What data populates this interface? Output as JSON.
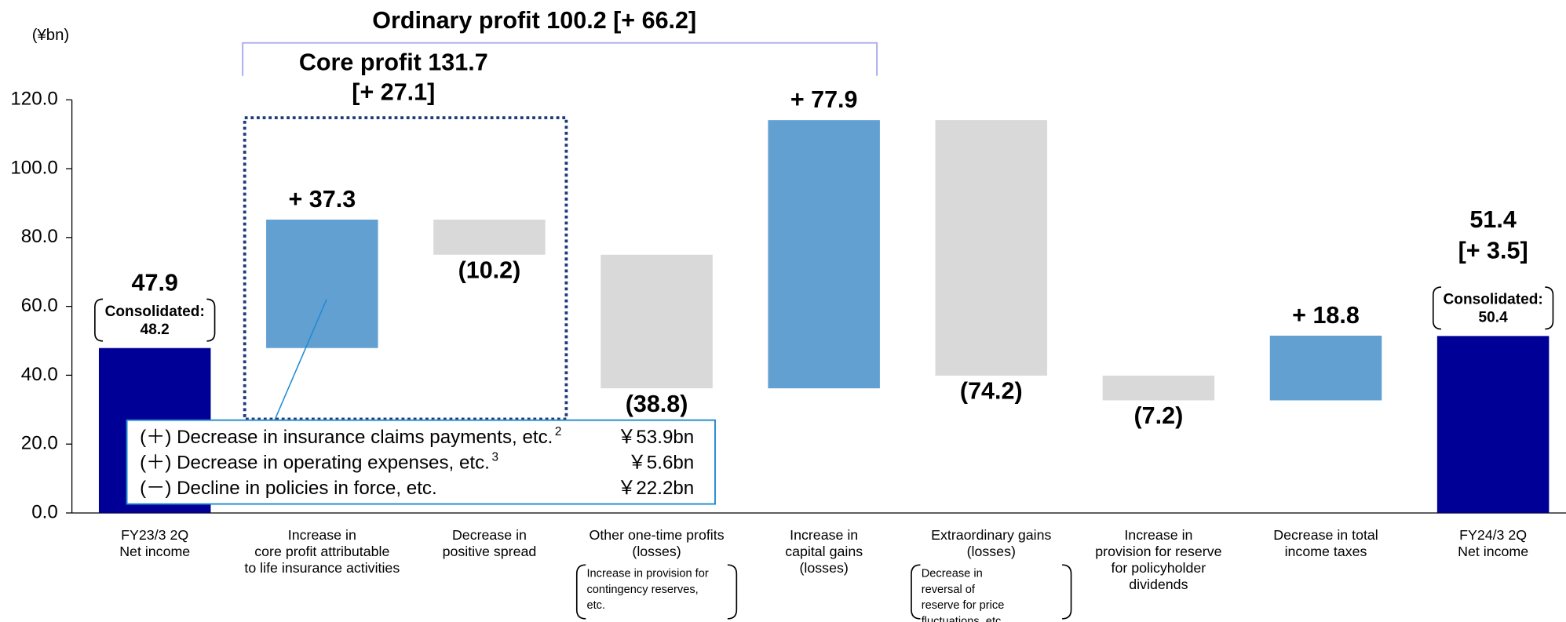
{
  "chart_data": {
    "type": "waterfall",
    "unit_label": "(¥bn)",
    "categories": [
      [
        "FY23/3 2Q",
        "Net income"
      ],
      [
        "Increase in",
        "core profit attributable",
        "to life insurance activities"
      ],
      [
        "Decrease in",
        "positive spread"
      ],
      [
        "Other one-time profits",
        "(losses)"
      ],
      [
        "Increase in",
        "capital gains",
        "(losses)"
      ],
      [
        "Extraordinary gains",
        "(losses)"
      ],
      [
        "Increase in",
        "provision for reserve",
        "for policyholder",
        "dividends"
      ],
      [
        "Decrease in total",
        "income taxes"
      ],
      [
        "FY24/3 2Q",
        "Net income"
      ]
    ],
    "values": [
      47.9,
      37.3,
      -10.2,
      -38.8,
      77.9,
      -74.2,
      -7.2,
      18.8,
      51.4
    ],
    "value_labels": [
      "47.9",
      "+ 37.3",
      "(10.2)",
      "(38.8)",
      "+ 77.9",
      "(74.2)",
      "(7.2)",
      "+ 18.8",
      "51.4"
    ],
    "value_sublabels": [
      null,
      null,
      null,
      null,
      null,
      null,
      null,
      null,
      "[+ 3.5]"
    ],
    "measure": [
      "absolute",
      "relative",
      "relative",
      "relative",
      "relative",
      "relative",
      "relative",
      "relative",
      "absolute"
    ],
    "bar_notes": [
      [
        "Consolidated:",
        "48.2"
      ],
      null,
      null,
      null,
      null,
      null,
      null,
      null,
      [
        "Consolidated:",
        "50.4"
      ]
    ],
    "category_notes": [
      null,
      null,
      null,
      [
        "Increase in provision for",
        "contingency reserves,",
        "etc."
      ],
      null,
      [
        "Decrease in",
        "reversal of",
        "reserve for price",
        "fluctuations, etc."
      ],
      null,
      null,
      null
    ],
    "total_color": "#000096",
    "increase_color": "#63a0d2",
    "decrease_color": "#d9d9d9",
    "ylim": [
      0,
      120
    ],
    "yticks": [
      {
        "value": 0,
        "label": "0.0"
      },
      {
        "value": 20,
        "label": "20.0"
      },
      {
        "value": 40,
        "label": "40.0"
      },
      {
        "value": 60,
        "label": "60.0"
      },
      {
        "value": 80,
        "label": "80.0"
      },
      {
        "value": 100,
        "label": "100.0"
      },
      {
        "value": 120,
        "label": "120.0"
      }
    ],
    "ordinary_profit_label": "Ordinary profit  100.2 [+ 66.2]",
    "core_profit_label": [
      "Core profit 131.7",
      "[+ 27.1]"
    ],
    "callout": [
      {
        "text": "(＋) Decrease in insurance claims payments, etc.",
        "note": "2",
        "amount": "￥53.9bn"
      },
      {
        "text": "(＋) Decrease in operating expenses, etc.",
        "note": "3",
        "amount": "￥5.6bn"
      },
      {
        "text": "(－) Decline in policies in force, etc.",
        "note": null,
        "amount": "￥22.2bn"
      }
    ]
  }
}
